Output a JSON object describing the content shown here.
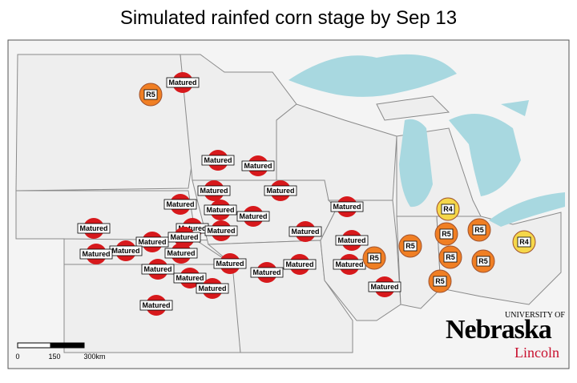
{
  "title": "Simulated rainfed corn stage by Sep 13",
  "stage_colors": {
    "Matured": "#d7191c",
    "R5": "#f07f24",
    "R4": "#f5d74a"
  },
  "markers": [
    {
      "label": "R5"
    },
    {
      "label": "Matured"
    },
    {
      "label": "Matured"
    },
    {
      "label": "Matured"
    },
    {
      "label": "Matured"
    },
    {
      "label": "Matured"
    },
    {
      "label": "Matured"
    },
    {
      "label": "Matured"
    },
    {
      "label": "Matured"
    },
    {
      "label": "Matured"
    },
    {
      "label": "Matured"
    },
    {
      "label": "Matured"
    },
    {
      "label": "Matured"
    },
    {
      "label": "Matured"
    },
    {
      "label": "Matured"
    },
    {
      "label": "Matured"
    },
    {
      "label": "Matured"
    },
    {
      "label": "Matured"
    },
    {
      "label": "Matured"
    },
    {
      "label": "Matured"
    },
    {
      "label": "Matured"
    },
    {
      "label": "Matured"
    },
    {
      "label": "Matured"
    },
    {
      "label": "Matured"
    },
    {
      "label": "Matured"
    },
    {
      "label": "Matured"
    },
    {
      "label": "Matured"
    },
    {
      "label": "Matured"
    },
    {
      "label": "Matured"
    },
    {
      "label": "R5"
    },
    {
      "label": "R5"
    },
    {
      "label": "R4"
    },
    {
      "label": "R5"
    },
    {
      "label": "R5"
    },
    {
      "label": "R5"
    },
    {
      "label": "R5"
    },
    {
      "label": "R5"
    },
    {
      "label": "R4"
    }
  ],
  "scale": {
    "labels": [
      "0",
      "150",
      "300km"
    ]
  },
  "logo": {
    "top": "UNIVERSITY OF",
    "name": "Nebraska",
    "campus": "Lincoln"
  }
}
